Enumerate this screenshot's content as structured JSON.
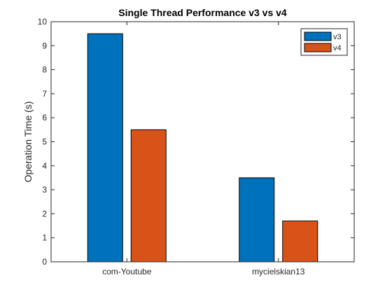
{
  "chart_data": {
    "type": "bar",
    "title": "Single Thread Performance v3 vs v4",
    "xlabel": "",
    "ylabel": "Operation Time (s)",
    "categories": [
      "com-Youtube",
      "mycielskian13"
    ],
    "series": [
      {
        "name": "v3",
        "values": [
          9.5,
          3.5
        ],
        "color": "#0072BD"
      },
      {
        "name": "v4",
        "values": [
          5.5,
          1.7
        ],
        "color": "#D95319"
      }
    ],
    "ylim": [
      0,
      10
    ],
    "yticks": [
      0,
      1,
      2,
      3,
      4,
      5,
      6,
      7,
      8,
      9,
      10
    ],
    "grid": false,
    "legend_position": "top-right"
  }
}
